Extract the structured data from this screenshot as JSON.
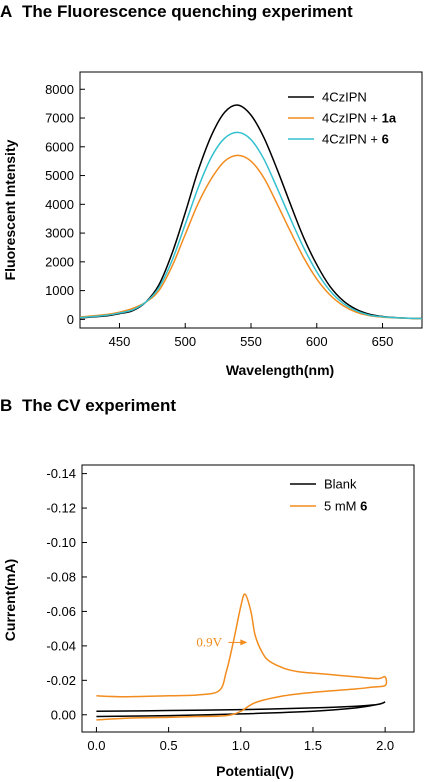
{
  "chart_data": [
    {
      "panel_label": "A",
      "title": "The Fluorescence quenching experiment",
      "type": "line",
      "xlabel": "Wavelength(nm)",
      "ylabel": "Fluorescent Intensity",
      "xlim": [
        420,
        680
      ],
      "ylim": [
        -300,
        8600
      ],
      "xticks": [
        "450",
        "500",
        "550",
        "600",
        "650"
      ],
      "yticks": [
        "0",
        "1000",
        "2000",
        "3000",
        "4000",
        "5000",
        "6000",
        "7000",
        "8000"
      ],
      "legend_position": "top-right",
      "series": [
        {
          "name": "4CzIPN",
          "legend_rest": "",
          "color": "#000000",
          "x": [
            420,
            440,
            450,
            460,
            470,
            480,
            490,
            500,
            510,
            520,
            530,
            540,
            550,
            560,
            570,
            580,
            590,
            600,
            610,
            620,
            630,
            640,
            650,
            660,
            670,
            680
          ],
          "y": [
            50,
            120,
            200,
            300,
            600,
            1200,
            2300,
            3700,
            5200,
            6400,
            7200,
            7450,
            7100,
            6300,
            5200,
            4000,
            2850,
            1900,
            1150,
            650,
            350,
            180,
            100,
            60,
            40,
            30
          ]
        },
        {
          "name": "4CzIPN + ",
          "legend_rest": "1a",
          "color": "#f28c1e",
          "x": [
            420,
            440,
            450,
            460,
            470,
            480,
            490,
            500,
            510,
            520,
            530,
            540,
            550,
            560,
            570,
            580,
            590,
            600,
            610,
            620,
            630,
            640,
            650,
            660,
            670,
            680
          ],
          "y": [
            80,
            170,
            250,
            380,
            600,
            1000,
            1850,
            2950,
            4050,
            4900,
            5500,
            5700,
            5500,
            4900,
            4000,
            3050,
            2150,
            1400,
            850,
            480,
            250,
            130,
            80,
            50,
            35,
            25
          ]
        },
        {
          "name": "4CzIPN + ",
          "legend_rest": "6",
          "color": "#33c1cf",
          "x": [
            420,
            440,
            450,
            460,
            470,
            480,
            490,
            500,
            510,
            520,
            530,
            540,
            550,
            560,
            570,
            580,
            590,
            600,
            610,
            620,
            630,
            640,
            650,
            660,
            670,
            680
          ],
          "y": [
            60,
            140,
            220,
            330,
            600,
            1100,
            2050,
            3300,
            4600,
            5650,
            6300,
            6500,
            6250,
            5550,
            4550,
            3500,
            2500,
            1650,
            1000,
            560,
            300,
            150,
            90,
            55,
            38,
            28
          ]
        }
      ]
    },
    {
      "panel_label": "B",
      "title": "The CV experiment",
      "type": "line",
      "xlabel": "Potential(V)",
      "ylabel": "Current(mA)",
      "xlim": [
        -0.1,
        2.2
      ],
      "ylim": [
        0.01,
        -0.145
      ],
      "xticks": [
        "0.0",
        "0.5",
        "1.0",
        "1.5",
        "2.0"
      ],
      "yticks": [
        "0.00",
        "-0.02",
        "-0.04",
        "-0.06",
        "-0.08",
        "-0.10",
        "-0.12",
        "-0.14"
      ],
      "legend_position": "top-right",
      "annotation": {
        "text": "0.9V",
        "x": 0.9,
        "y": -0.042,
        "color": "#f28c1e"
      },
      "series": [
        {
          "name": "Blank",
          "legend_rest": "",
          "color": "#000000",
          "x": [
            0.0,
            0.5,
            1.0,
            1.5,
            1.8,
            1.95,
            2.0,
            1.95,
            1.8,
            1.5,
            1.0,
            0.5,
            0.0
          ],
          "y": [
            -0.002,
            -0.0025,
            -0.003,
            -0.004,
            -0.005,
            -0.006,
            -0.0075,
            -0.006,
            -0.004,
            -0.002,
            -0.0005,
            0.0005,
            0.001
          ]
        },
        {
          "name": "5 mM ",
          "legend_rest": "6",
          "color": "#f28c1e",
          "x": [
            0.0,
            0.2,
            0.5,
            0.7,
            0.85,
            0.9,
            0.95,
            1.0,
            1.03,
            1.07,
            1.1,
            1.15,
            1.2,
            1.3,
            1.4,
            1.6,
            1.8,
            1.95,
            2.0,
            2.0,
            1.9,
            1.8,
            1.5,
            1.3,
            1.1,
            1.0,
            0.9,
            0.7,
            0.5,
            0.2,
            0.0
          ],
          "y": [
            -0.011,
            -0.0105,
            -0.011,
            -0.0115,
            -0.014,
            -0.025,
            -0.043,
            -0.063,
            -0.07,
            -0.06,
            -0.046,
            -0.036,
            -0.031,
            -0.027,
            -0.025,
            -0.0235,
            -0.022,
            -0.021,
            -0.022,
            -0.017,
            -0.016,
            -0.015,
            -0.013,
            -0.011,
            -0.007,
            -0.002,
            0.0005,
            0.001,
            0.0015,
            0.002,
            0.003
          ]
        }
      ]
    }
  ]
}
